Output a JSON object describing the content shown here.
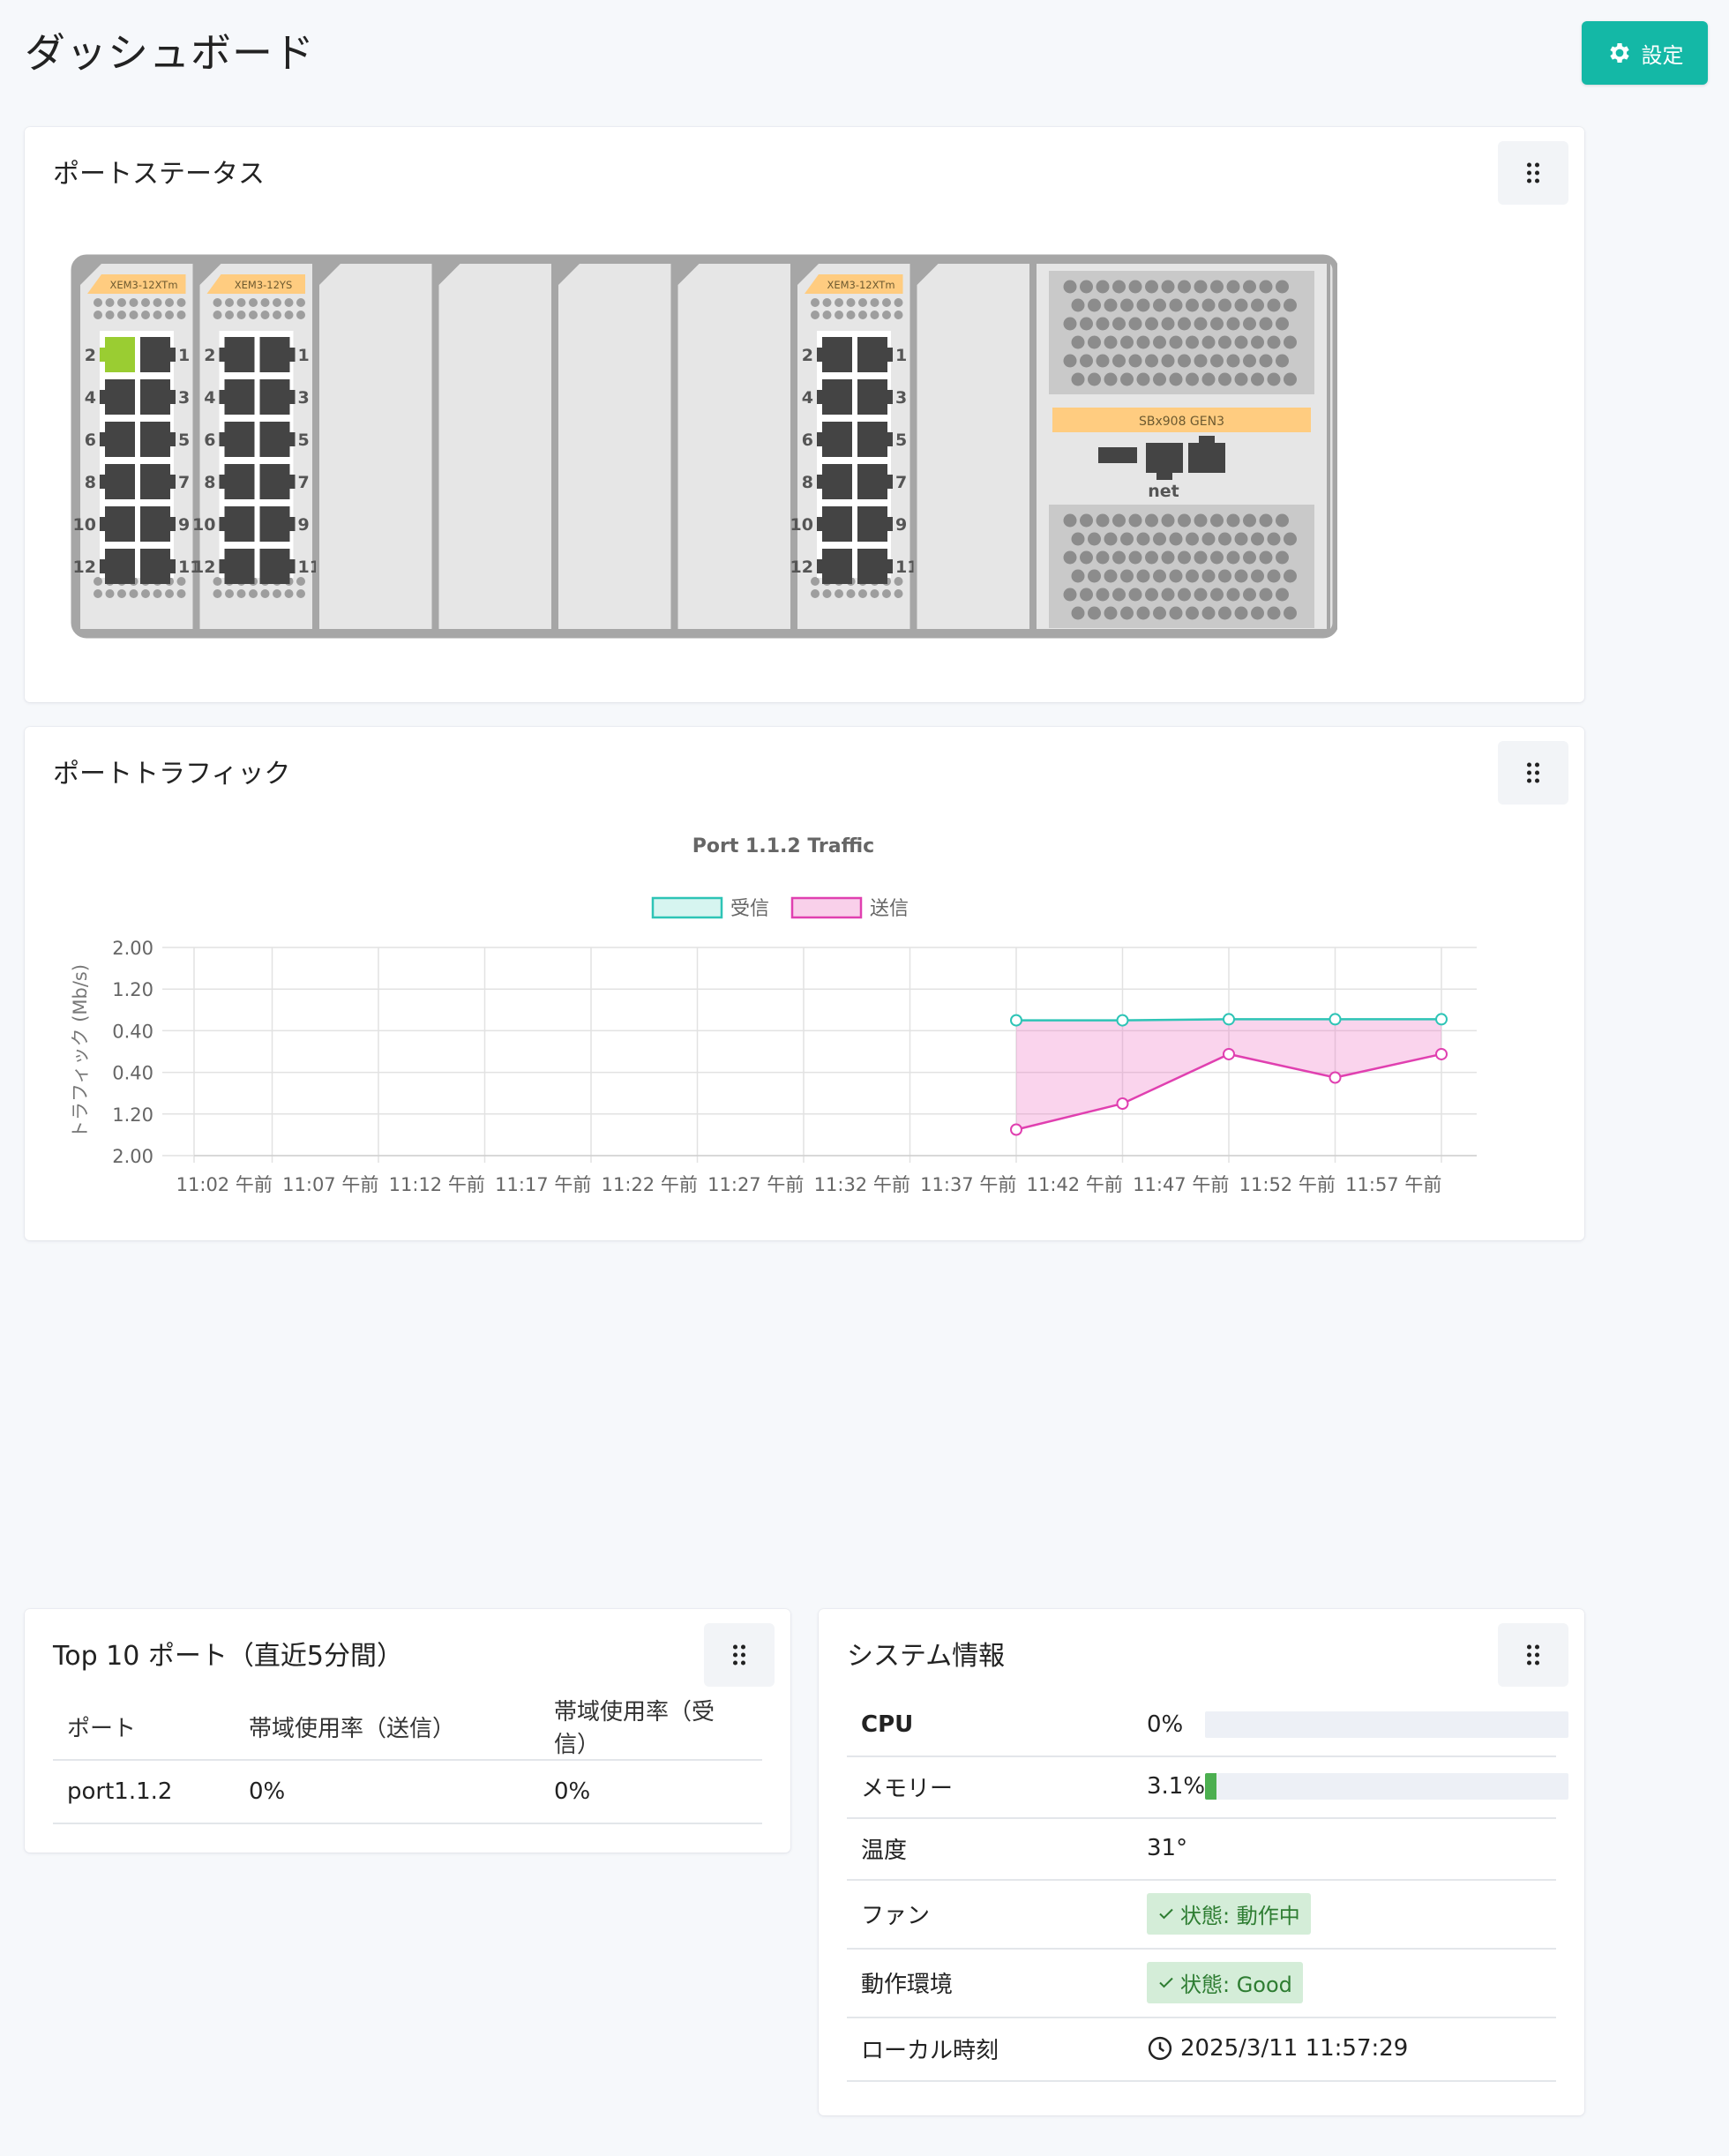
{
  "header": {
    "title": "ダッシュボード",
    "settings_label": "設定"
  },
  "port_status": {
    "title": "ポートステータス",
    "modules": [
      {
        "label": "XEM3-12XTm",
        "ports_left": [
          "2",
          "4",
          "6",
          "8",
          "10",
          "12"
        ],
        "ports_right": [
          "1",
          "3",
          "5",
          "7",
          "9",
          "11"
        ],
        "active_port": "2"
      },
      {
        "label": "XEM3-12YS",
        "ports_left": [
          "2",
          "4",
          "6",
          "8",
          "10",
          "12"
        ],
        "ports_right": [
          "1",
          "3",
          "5",
          "7",
          "9",
          "11"
        ]
      },
      {
        "label": "XEM3-12XTm",
        "ports_left": [
          "2",
          "4",
          "6",
          "8",
          "10",
          "12"
        ],
        "ports_right": [
          "1",
          "3",
          "5",
          "7",
          "9",
          "11"
        ]
      }
    ],
    "controller_label": "SBx908 GEN3",
    "net_label": "net",
    "colors": {
      "active": "#9acd32",
      "port": "#444444",
      "module_label_bg": "#ffcc80",
      "chassis": "#a6a6a6"
    }
  },
  "traffic": {
    "title": "ポートトラフィック",
    "chart_data": {
      "type": "line",
      "title": "Port 1.1.2 Traffic",
      "ylabel": "トラフィック (Mb/s)",
      "y_tick_labels": [
        "2.00",
        "1.20",
        "0.40",
        "0.40",
        "1.20",
        "2.00"
      ],
      "ylim": [
        -2.0,
        2.0
      ],
      "categories": [
        "11:02 午前",
        "11:07 午前",
        "11:12 午前",
        "11:17 午前",
        "11:22 午前",
        "11:27 午前",
        "11:32 午前",
        "11:37 午前",
        "11:42 午前",
        "11:47 午前",
        "11:52 午前",
        "11:57 午前"
      ],
      "series": [
        {
          "name": "受信",
          "color": "#2ec4b6",
          "values": [
            null,
            null,
            null,
            null,
            null,
            null,
            null,
            -0.6,
            -0.6,
            -0.62,
            -0.62,
            -0.62
          ]
        },
        {
          "name": "送信",
          "color": "#e040b0",
          "values": [
            null,
            null,
            null,
            null,
            null,
            null,
            null,
            1.5,
            1.0,
            0.05,
            0.5,
            0.05
          ]
        }
      ],
      "grid": true,
      "legend": "top"
    }
  },
  "top10": {
    "title": "Top 10 ポート（直近5分間）",
    "columns": [
      "ポート",
      "帯域使用率（送信）",
      "帯域使用率（受信）"
    ],
    "rows": [
      [
        "port1.1.2",
        "0%",
        "0%"
      ]
    ]
  },
  "sysinfo": {
    "title": "システム情報",
    "cpu": {
      "label": "CPU",
      "value": "0%",
      "percent": 0
    },
    "memory": {
      "label": "メモリー",
      "value": "3.1%",
      "percent": 3.1
    },
    "temperature": {
      "label": "温度",
      "value": "31°"
    },
    "fan": {
      "label": "ファン",
      "status": "状態: 動作中"
    },
    "environment": {
      "label": "動作環境",
      "status": "状態: Good"
    },
    "local_time": {
      "label": "ローカル時刻",
      "value": "2025/3/11 11:57:29"
    }
  }
}
